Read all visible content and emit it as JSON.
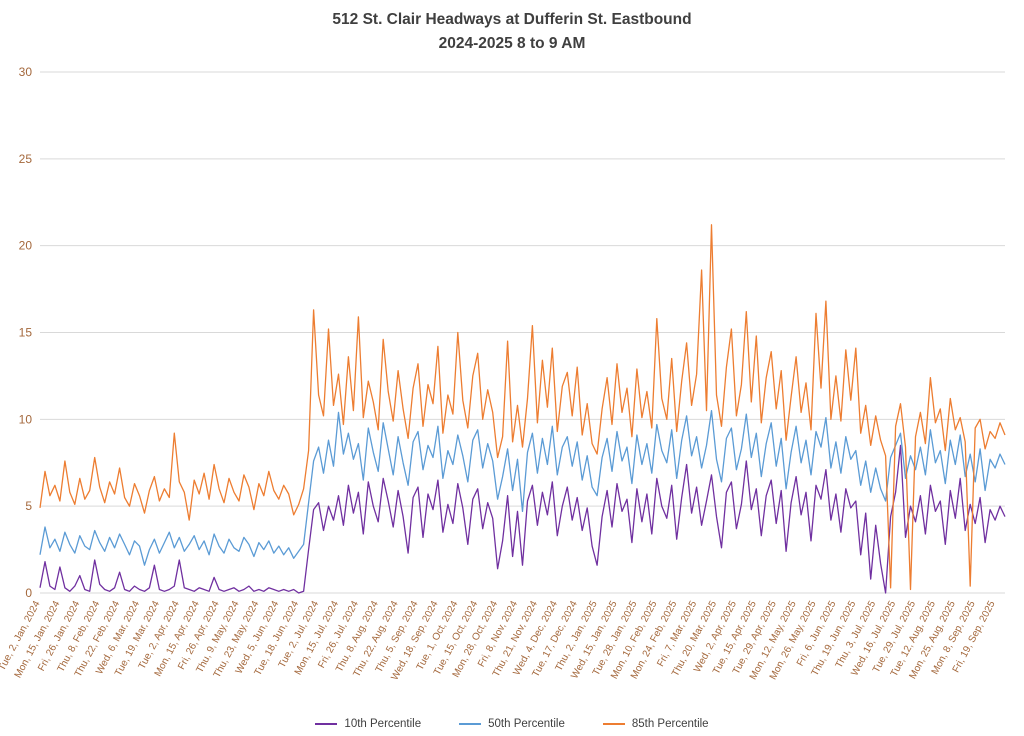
{
  "title": {
    "line1": "512 St. Clair Headways at Dufferin St. Eastbound",
    "line2": "2024-2025 8 to 9 AM"
  },
  "chart_data": {
    "type": "line",
    "title": "512 St. Clair Headways at Dufferin St. Eastbound",
    "subtitle": "2024-2025 8 to 9 AM",
    "xlabel": "",
    "ylabel": "",
    "ylim": [
      0,
      30
    ],
    "yticks": [
      0,
      5,
      10,
      15,
      20,
      25,
      30
    ],
    "grid": true,
    "grid_color": "#d9d9d9",
    "axis_label_color": "#a4683c",
    "title_color": "#3f3f3f",
    "legend_position": "bottom",
    "x_tick_every": 4,
    "points_per_series": 195,
    "x_tick_labels": [
      "Tue, 2, Jan, 2024",
      "Mon, 15, Jan, 2024",
      "Fri, 26, Jan, 2024",
      "Thu, 8, Feb, 2024",
      "Thu, 22, Feb, 2024",
      "Wed, 6, Mar, 2024",
      "Tue, 19, Mar, 2024",
      "Tue, 2, Apr, 2024",
      "Mon, 15, Apr, 2024",
      "Fri, 26, Apr, 2024",
      "Thu, 9, May, 2024",
      "Thu, 23, May, 2024",
      "Wed, 5, Jun, 2024",
      "Tue, 18, Jun, 2024",
      "Tue, 2, Jul, 2024",
      "Mon, 15, Jul, 2024",
      "Fri, 26, Jul, 2024",
      "Thu, 8, Aug, 2024",
      "Thu, 22, Aug, 2024",
      "Thu, 5, Sep, 2024",
      "Wed, 18, Sep, 2024",
      "Tue, 1, Oct, 2024",
      "Tue, 15, Oct, 2024",
      "Mon, 28, Oct, 2024",
      "Fri, 8, Nov, 2024",
      "Thu, 21, Nov, 2024",
      "Wed, 4, Dec, 2024",
      "Tue, 17, Dec, 2024",
      "Thu, 2, Jan, 2025",
      "Wed, 15, Jan, 2025",
      "Tue, 28, Jan, 2025",
      "Mon, 10, Feb, 2025",
      "Mon, 24, Feb, 2025",
      "Fri, 7, Mar, 2025",
      "Thu, 20, Mar, 2025",
      "Wed, 2, Apr, 2025",
      "Tue, 15, Apr, 2025",
      "Tue, 29, Apr, 2025",
      "Mon, 12, May, 2025",
      "Mon, 26, May, 2025",
      "Fri, 6, Jun, 2025",
      "Thu, 19, Jun, 2025",
      "Thu, 3, Jul, 2025",
      "Wed, 16, Jul, 2025",
      "Tue, 29, Jul, 2025",
      "Tue, 12, Aug, 2025",
      "Mon, 25, Aug, 2025",
      "Mon, 8, Sep, 2025",
      "Fri, 19, Sep, 2025"
    ],
    "series": [
      {
        "name": "10th Percentile",
        "color": "#7030A0",
        "values": [
          0.3,
          1.8,
          0.4,
          0.2,
          1.5,
          0.3,
          0.1,
          0.4,
          1.0,
          0.2,
          0.1,
          1.9,
          0.5,
          0.2,
          0.1,
          0.3,
          1.2,
          0.2,
          0.1,
          0.4,
          0.2,
          0.1,
          0.3,
          1.6,
          0.2,
          0.1,
          0.2,
          0.4,
          1.9,
          0.3,
          0.2,
          0.1,
          0.3,
          0.2,
          0.1,
          0.9,
          0.2,
          0.1,
          0.2,
          0.3,
          0.1,
          0.2,
          0.4,
          0.1,
          0.2,
          0.1,
          0.3,
          0.2,
          0.1,
          0.2,
          0.1,
          0.2,
          0.0,
          0.1,
          2.5,
          4.8,
          5.2,
          3.6,
          5.0,
          4.2,
          5.6,
          3.9,
          6.2,
          4.6,
          5.8,
          3.4,
          6.4,
          5.0,
          4.1,
          6.6,
          5.3,
          3.8,
          5.9,
          4.4,
          2.3,
          5.5,
          6.1,
          3.2,
          5.7,
          4.8,
          6.5,
          3.5,
          5.1,
          4.0,
          6.3,
          4.9,
          2.8,
          5.4,
          6.0,
          3.7,
          5.2,
          4.3,
          1.4,
          3.0,
          5.6,
          2.1,
          4.7,
          1.6,
          5.3,
          6.2,
          3.9,
          5.8,
          4.5,
          6.4,
          3.3,
          5.0,
          6.1,
          4.2,
          5.5,
          3.6,
          4.9,
          2.7,
          1.6,
          4.4,
          5.9,
          3.8,
          6.3,
          4.7,
          5.4,
          2.9,
          6.0,
          4.1,
          5.7,
          3.4,
          6.6,
          5.0,
          4.3,
          6.2,
          3.1,
          5.5,
          7.4,
          4.6,
          6.1,
          3.9,
          5.3,
          6.8,
          4.4,
          2.6,
          5.8,
          6.4,
          3.7,
          5.1,
          7.6,
          4.8,
          6.0,
          3.3,
          5.6,
          6.5,
          4.0,
          5.9,
          2.4,
          5.2,
          6.7,
          4.5,
          5.8,
          3.0,
          6.2,
          5.4,
          7.1,
          4.2,
          5.7,
          3.5,
          6.0,
          4.9,
          5.3,
          2.2,
          4.6,
          0.8,
          3.9,
          1.7,
          0.0,
          4.4,
          5.8,
          8.5,
          3.2,
          5.0,
          4.1,
          5.6,
          3.4,
          6.2,
          4.7,
          5.3,
          2.8,
          5.9,
          4.3,
          6.6,
          3.6,
          5.1,
          4.0,
          5.5,
          2.9,
          4.8,
          4.2,
          5.0,
          4.4
        ]
      },
      {
        "name": "50th Percentile",
        "color": "#5B9BD5",
        "values": [
          2.2,
          3.8,
          2.6,
          3.1,
          2.4,
          3.5,
          2.8,
          2.3,
          3.3,
          2.7,
          2.5,
          3.6,
          2.9,
          2.4,
          3.2,
          2.6,
          3.4,
          2.8,
          2.2,
          3.0,
          2.7,
          1.6,
          2.5,
          3.1,
          2.3,
          2.9,
          3.5,
          2.6,
          3.2,
          2.4,
          2.8,
          3.3,
          2.5,
          3.0,
          2.2,
          3.4,
          2.7,
          2.3,
          3.1,
          2.6,
          2.4,
          3.2,
          2.8,
          2.1,
          2.9,
          2.5,
          3.0,
          2.3,
          2.7,
          2.2,
          2.6,
          2.0,
          2.4,
          2.8,
          5.2,
          7.6,
          8.4,
          6.9,
          8.8,
          7.3,
          10.4,
          8.0,
          9.2,
          7.7,
          8.6,
          6.5,
          9.5,
          8.1,
          7.0,
          9.8,
          8.3,
          6.8,
          9.0,
          7.5,
          6.2,
          8.7,
          9.3,
          7.1,
          8.5,
          7.8,
          9.6,
          6.6,
          8.2,
          7.4,
          9.1,
          7.9,
          6.4,
          8.8,
          9.4,
          7.2,
          8.6,
          7.6,
          5.4,
          6.7,
          8.3,
          5.9,
          7.7,
          4.7,
          8.1,
          9.2,
          6.9,
          8.9,
          7.4,
          9.6,
          6.8,
          8.4,
          9.0,
          7.3,
          8.7,
          6.5,
          7.9,
          6.1,
          5.6,
          7.8,
          8.9,
          7.0,
          9.3,
          7.6,
          8.4,
          6.3,
          9.1,
          7.4,
          8.6,
          6.9,
          9.7,
          8.2,
          7.5,
          9.4,
          6.6,
          8.8,
          10.2,
          7.9,
          9.0,
          7.2,
          8.5,
          10.5,
          7.7,
          6.4,
          8.9,
          9.5,
          7.1,
          8.3,
          10.3,
          7.8,
          9.2,
          6.7,
          8.6,
          9.8,
          7.3,
          8.9,
          6.0,
          8.1,
          9.6,
          7.5,
          8.8,
          6.8,
          9.3,
          8.4,
          10.1,
          7.2,
          8.7,
          6.9,
          9.0,
          7.7,
          8.2,
          6.2,
          7.6,
          5.8,
          7.2,
          6.0,
          5.3,
          7.8,
          8.5,
          9.2,
          6.6,
          7.9,
          7.1,
          8.4,
          6.8,
          9.4,
          7.5,
          8.2,
          6.3,
          8.8,
          7.4,
          9.1,
          6.7,
          8.0,
          6.4,
          8.3,
          5.9,
          7.7,
          7.2,
          8.0,
          7.4
        ]
      },
      {
        "name": "85th Percentile",
        "color": "#ED7D31",
        "values": [
          4.9,
          7.0,
          5.6,
          6.2,
          5.3,
          7.6,
          5.8,
          5.1,
          6.6,
          5.4,
          5.9,
          7.8,
          6.1,
          5.2,
          6.4,
          5.7,
          7.2,
          5.5,
          5.0,
          6.3,
          5.6,
          4.6,
          5.9,
          6.7,
          5.3,
          6.0,
          5.5,
          9.2,
          6.4,
          5.8,
          4.2,
          6.5,
          5.7,
          6.9,
          5.4,
          7.4,
          6.0,
          5.2,
          6.6,
          5.8,
          5.3,
          6.8,
          6.1,
          4.8,
          6.3,
          5.6,
          7.0,
          5.9,
          5.4,
          6.2,
          5.7,
          4.5,
          5.1,
          6.0,
          8.2,
          16.3,
          11.4,
          10.2,
          15.2,
          10.8,
          12.6,
          9.7,
          13.6,
          10.5,
          15.9,
          10.1,
          12.2,
          11.0,
          9.4,
          14.6,
          11.6,
          9.9,
          12.8,
          10.6,
          8.9,
          11.8,
          13.2,
          9.6,
          12.0,
          10.9,
          14.2,
          9.2,
          11.4,
          10.3,
          15.0,
          11.1,
          9.5,
          12.5,
          13.8,
          10.0,
          11.7,
          10.4,
          7.8,
          9.0,
          14.5,
          8.7,
          10.8,
          8.4,
          11.2,
          15.4,
          9.8,
          13.4,
          10.7,
          14.1,
          9.3,
          11.9,
          12.7,
          10.2,
          13.0,
          9.1,
          10.9,
          8.6,
          8.0,
          10.6,
          12.4,
          9.7,
          13.2,
          10.4,
          11.8,
          9.0,
          12.9,
          10.1,
          11.6,
          9.5,
          15.8,
          11.2,
          10.0,
          13.5,
          9.3,
          12.2,
          14.4,
          10.8,
          12.6,
          18.6,
          10.5,
          21.2,
          11.4,
          9.6,
          13.0,
          15.2,
          10.2,
          12.0,
          16.2,
          11.0,
          14.8,
          9.8,
          12.4,
          13.9,
          10.6,
          12.8,
          8.8,
          11.3,
          13.6,
          10.4,
          12.1,
          9.4,
          16.1,
          11.8,
          16.8,
          10.0,
          12.5,
          9.9,
          14.0,
          11.1,
          14.1,
          9.2,
          10.8,
          8.5,
          10.2,
          8.8,
          7.9,
          0.3,
          9.6,
          10.9,
          8.4,
          0.2,
          9.0,
          10.4,
          8.6,
          12.4,
          9.8,
          10.6,
          8.2,
          11.2,
          9.4,
          10.1,
          8.7,
          0.4,
          9.5,
          10.0,
          8.3,
          9.3,
          8.9,
          9.8,
          9.1
        ]
      }
    ]
  }
}
